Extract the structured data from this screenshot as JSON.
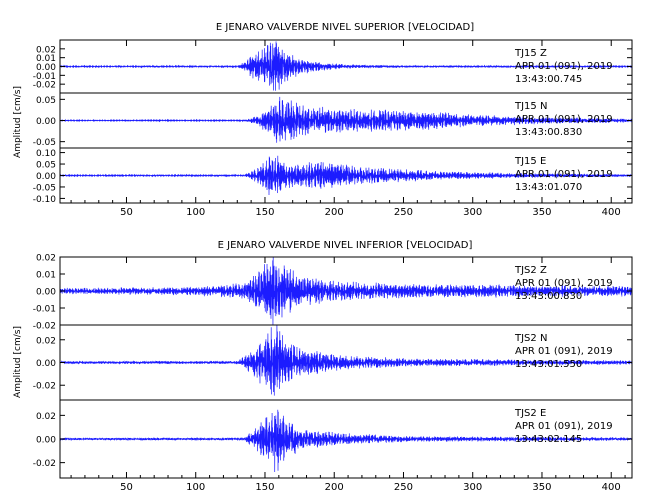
{
  "chart_data": [
    {
      "type": "line",
      "title": "E JENARO VALVERDE NIVEL SUPERIOR [VELOCIDAD]",
      "ylabel": "Amplitud [cm/s]",
      "xlim": [
        2,
        415
      ],
      "xticks": [
        50,
        100,
        150,
        200,
        250,
        300,
        350,
        400
      ],
      "colors": {
        "trace": "#1c1cff",
        "axis": "#000000"
      },
      "panels": [
        {
          "station": "TJ15",
          "component": "Z",
          "date": "APR 01 (091), 2019",
          "time": "13:43:00.745",
          "ylim": [
            -0.03,
            0.03
          ],
          "yticks": [
            0.02,
            0.01,
            0.0,
            -0.01,
            -0.02
          ],
          "ytick_labels": [
            "0.02",
            "0.01",
            "0.00",
            "-0.01",
            "-0.02"
          ],
          "noise_level": 0.0004,
          "envelope": [
            [
              0,
              0.0005
            ],
            [
              130,
              0.0006
            ],
            [
              135,
              0.005
            ],
            [
              145,
              0.015
            ],
            [
              152,
              0.022
            ],
            [
              158,
              0.027
            ],
            [
              165,
              0.015
            ],
            [
              175,
              0.008
            ],
            [
              190,
              0.004
            ],
            [
              210,
              0.002
            ],
            [
              250,
              0.001
            ],
            [
              415,
              0.0006
            ]
          ]
        },
        {
          "station": "TJ15",
          "component": "N",
          "date": "APR 01 (091), 2019",
          "time": "13:43:00.830",
          "ylim": [
            -0.065,
            0.065
          ],
          "yticks": [
            0.05,
            0.0,
            -0.05
          ],
          "ytick_labels": [
            "0.05",
            "0.00",
            "-0.05"
          ],
          "noise_level": 0.0005,
          "envelope": [
            [
              0,
              0.0008
            ],
            [
              135,
              0.001
            ],
            [
              145,
              0.01
            ],
            [
              155,
              0.035
            ],
            [
              160,
              0.05
            ],
            [
              168,
              0.045
            ],
            [
              180,
              0.03
            ],
            [
              200,
              0.025
            ],
            [
              230,
              0.022
            ],
            [
              260,
              0.02
            ],
            [
              300,
              0.012
            ],
            [
              350,
              0.007
            ],
            [
              415,
              0.004
            ]
          ]
        },
        {
          "station": "TJ15",
          "component": "E",
          "date": "APR 01 (091), 2019",
          "time": "13:43:01.070",
          "ylim": [
            -0.12,
            0.12
          ],
          "yticks": [
            0.1,
            0.05,
            0.0,
            -0.05,
            -0.1
          ],
          "ytick_labels": [
            "0.10",
            "0.05",
            "0.00",
            "-0.05",
            "-0.10"
          ],
          "noise_level": 0.001,
          "envelope": [
            [
              0,
              0.002
            ],
            [
              135,
              0.003
            ],
            [
              145,
              0.03
            ],
            [
              155,
              0.09
            ],
            [
              162,
              0.06
            ],
            [
              172,
              0.04
            ],
            [
              190,
              0.055
            ],
            [
              200,
              0.045
            ],
            [
              230,
              0.03
            ],
            [
              280,
              0.015
            ],
            [
              350,
              0.008
            ],
            [
              415,
              0.005
            ]
          ]
        }
      ]
    },
    {
      "type": "line",
      "title": "E JENARO VALVERDE NIVEL INFERIOR [VELOCIDAD]",
      "ylabel": "Amplitud [cm/s]",
      "xlim": [
        2,
        415
      ],
      "xticks": [
        50,
        100,
        150,
        200,
        250,
        300,
        350,
        400
      ],
      "colors": {
        "trace": "#1c1cff",
        "axis": "#000000"
      },
      "panels": [
        {
          "station": "TJS2",
          "component": "Z",
          "date": "APR 01 (091), 2019",
          "time": "13:43:00.830",
          "ylim": [
            -0.02,
            0.02
          ],
          "yticks": [
            0.02,
            0.01,
            0.0,
            -0.01,
            -0.02
          ],
          "ytick_labels": [
            "0.02",
            "0.01",
            "0.00",
            "-0.01",
            "-0.02"
          ],
          "noise_level": 0.0006,
          "envelope": [
            [
              0,
              0.0015
            ],
            [
              100,
              0.002
            ],
            [
              135,
              0.004
            ],
            [
              148,
              0.012
            ],
            [
              155,
              0.019
            ],
            [
              162,
              0.014
            ],
            [
              175,
              0.008
            ],
            [
              200,
              0.005
            ],
            [
              260,
              0.0035
            ],
            [
              415,
              0.0025
            ]
          ]
        },
        {
          "station": "TJS2",
          "component": "N",
          "date": "APR 01 (091), 2019",
          "time": "13:43:01.550",
          "ylim": [
            -0.033,
            0.033
          ],
          "yticks": [
            0.02,
            0.0,
            -0.02
          ],
          "ytick_labels": [
            "0.02",
            "0.00",
            "-0.02"
          ],
          "noise_level": 0.0006,
          "envelope": [
            [
              0,
              0.001
            ],
            [
              130,
              0.0012
            ],
            [
              140,
              0.008
            ],
            [
              150,
              0.02
            ],
            [
              157,
              0.03
            ],
            [
              165,
              0.018
            ],
            [
              180,
              0.01
            ],
            [
              210,
              0.005
            ],
            [
              260,
              0.003
            ],
            [
              415,
              0.0015
            ]
          ]
        },
        {
          "station": "TJS2",
          "component": "E",
          "date": "APR 01 (091), 2019",
          "time": "13:43:02.145",
          "ylim": [
            -0.033,
            0.033
          ],
          "yticks": [
            0.02,
            0.0,
            -0.02
          ],
          "ytick_labels": [
            "0.02",
            "0.00",
            "-0.02"
          ],
          "noise_level": 0.0005,
          "envelope": [
            [
              0,
              0.0008
            ],
            [
              135,
              0.001
            ],
            [
              145,
              0.01
            ],
            [
              153,
              0.02
            ],
            [
              158,
              0.027
            ],
            [
              165,
              0.014
            ],
            [
              180,
              0.007
            ],
            [
              210,
              0.004
            ],
            [
              260,
              0.002
            ],
            [
              415,
              0.0012
            ]
          ]
        }
      ]
    }
  ]
}
